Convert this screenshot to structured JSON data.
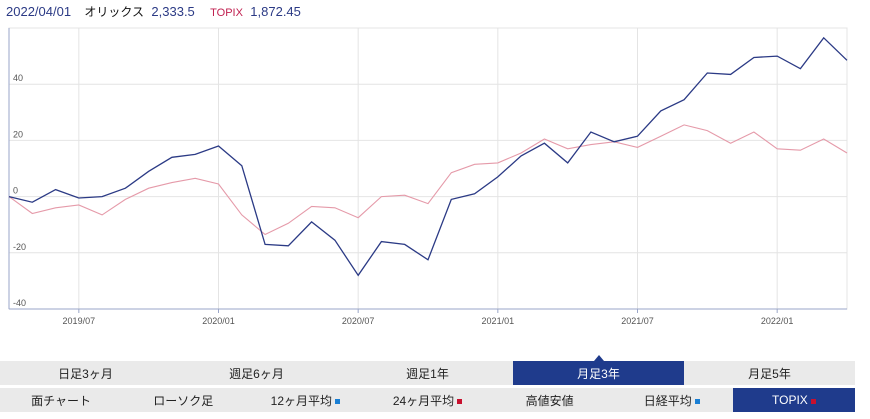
{
  "header": {
    "date": "2022/04/01",
    "stock_name": "オリックス",
    "stock_value": "2,333.5",
    "index_name": "TOPIX",
    "index_value": "1,872.45"
  },
  "period_tabs": [
    {
      "label": "日足3ヶ月",
      "active": false
    },
    {
      "label": "週足6ヶ月",
      "active": false
    },
    {
      "label": "週足1年",
      "active": false
    },
    {
      "label": "月足3年",
      "active": true
    },
    {
      "label": "月足5年",
      "active": false
    }
  ],
  "option_tabs": [
    {
      "label": "面チャート",
      "marker": "",
      "active": false
    },
    {
      "label": "ローソク足",
      "marker": "",
      "active": false
    },
    {
      "label": "12ヶ月平均",
      "marker": "#1a7fd4",
      "active": false
    },
    {
      "label": "24ヶ月平均",
      "marker": "#c8102e",
      "active": false
    },
    {
      "label": "高値安値",
      "marker": "",
      "active": false
    },
    {
      "label": "日経平均",
      "marker": "#1a7fd4",
      "active": false
    },
    {
      "label": "TOPIX",
      "marker": "#c8102e",
      "active": true
    }
  ],
  "colors": {
    "stock": "#2b3a85",
    "index": "#e59aa9",
    "grid": "#e4e4e4",
    "axis": "#9aa6c8"
  },
  "chart_data": {
    "type": "line",
    "ylim": [
      -40,
      60
    ],
    "yticks": [
      40,
      20,
      0,
      -20,
      -40
    ],
    "xtick_labels": [
      "2019/07",
      "2020/01",
      "2020/07",
      "2021/01",
      "2021/07",
      "2022/01"
    ],
    "xtick_index": [
      3,
      9,
      15,
      21,
      27,
      33
    ],
    "x_count": 37,
    "series": [
      {
        "name": "オリックス",
        "color": "#2b3a85",
        "values": [
          0,
          -2,
          2.5,
          -0.5,
          0,
          3,
          9,
          14,
          15,
          18,
          11,
          -17,
          -17.5,
          -9,
          -15.5,
          -28,
          -16,
          -17,
          -22.5,
          -1,
          1,
          7,
          14.5,
          19,
          12,
          23,
          19.5,
          21.5,
          30.5,
          34.5,
          44,
          43.5,
          49.5,
          50,
          45.5,
          56.5,
          48.5
        ]
      },
      {
        "name": "TOPIX",
        "color": "#e59aa9",
        "values": [
          0,
          -6,
          -4,
          -3,
          -6.5,
          -1,
          3,
          5,
          6.5,
          4.5,
          -6.5,
          -13.5,
          -9.5,
          -3.5,
          -4,
          -7.5,
          0,
          0.5,
          -2.5,
          8.5,
          11.5,
          12,
          15.5,
          20.5,
          17,
          18.5,
          19.5,
          17.5,
          21.5,
          25.5,
          23.5,
          19,
          23,
          17,
          16.5,
          20.5,
          15.5
        ]
      }
    ]
  }
}
